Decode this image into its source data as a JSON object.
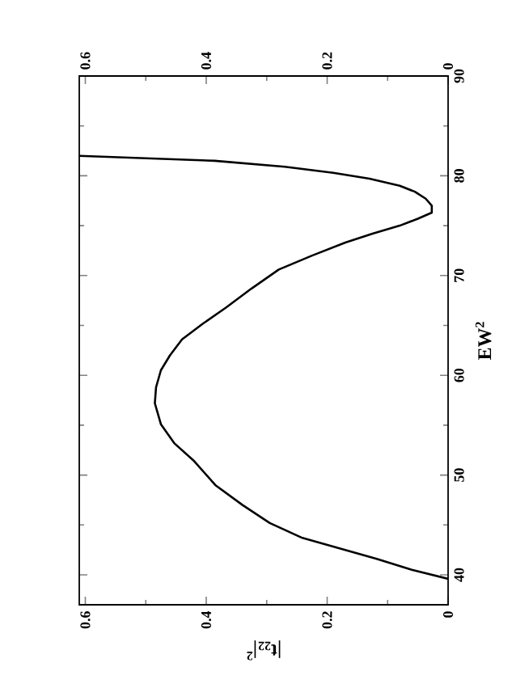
{
  "chart_data": {
    "type": "line",
    "xlabel": "|t$_{22}$|$^{2}$",
    "ylabel": "EW$^{2}$",
    "x": [
      0,
      0.06,
      0.118,
      0.241,
      0.295,
      0.34,
      0.385,
      0.42,
      0.453,
      0.475,
      0.485,
      0.483,
      0.475,
      0.46,
      0.44,
      0.405,
      0.367,
      0.325,
      0.28,
      0.225,
      0.17,
      0.125,
      0.08,
      0.05,
      0.027,
      0.027,
      0.037,
      0.055,
      0.08,
      0.13,
      0.19,
      0.27,
      0.386,
      0.61
    ],
    "series": [
      {
        "color": "#000000",
        "values": [
          39.6,
          40.5,
          41.6,
          43.7,
          45.2,
          47,
          49,
          51.4,
          53.2,
          55.1,
          57.2,
          58.8,
          60.5,
          62,
          63.6,
          65.2,
          66.8,
          68.7,
          70.6,
          72,
          73.3,
          74.2,
          75,
          75.7,
          76.3,
          77,
          77.7,
          78.4,
          79,
          79.7,
          80.3,
          80.9,
          81.5,
          82
        ]
      }
    ],
    "xlim": [
      0.61,
      0
    ],
    "xticks": [
      0.6,
      0.4,
      0.2,
      0
    ],
    "x2lim": [
      0.61,
      0
    ],
    "x2ticks": [
      0.6,
      0.4,
      0.2,
      0
    ],
    "ylim": [
      37,
      90
    ],
    "yticks": [
      40,
      50,
      60,
      70,
      80,
      90
    ],
    "grid": false,
    "line_style": "solid"
  }
}
